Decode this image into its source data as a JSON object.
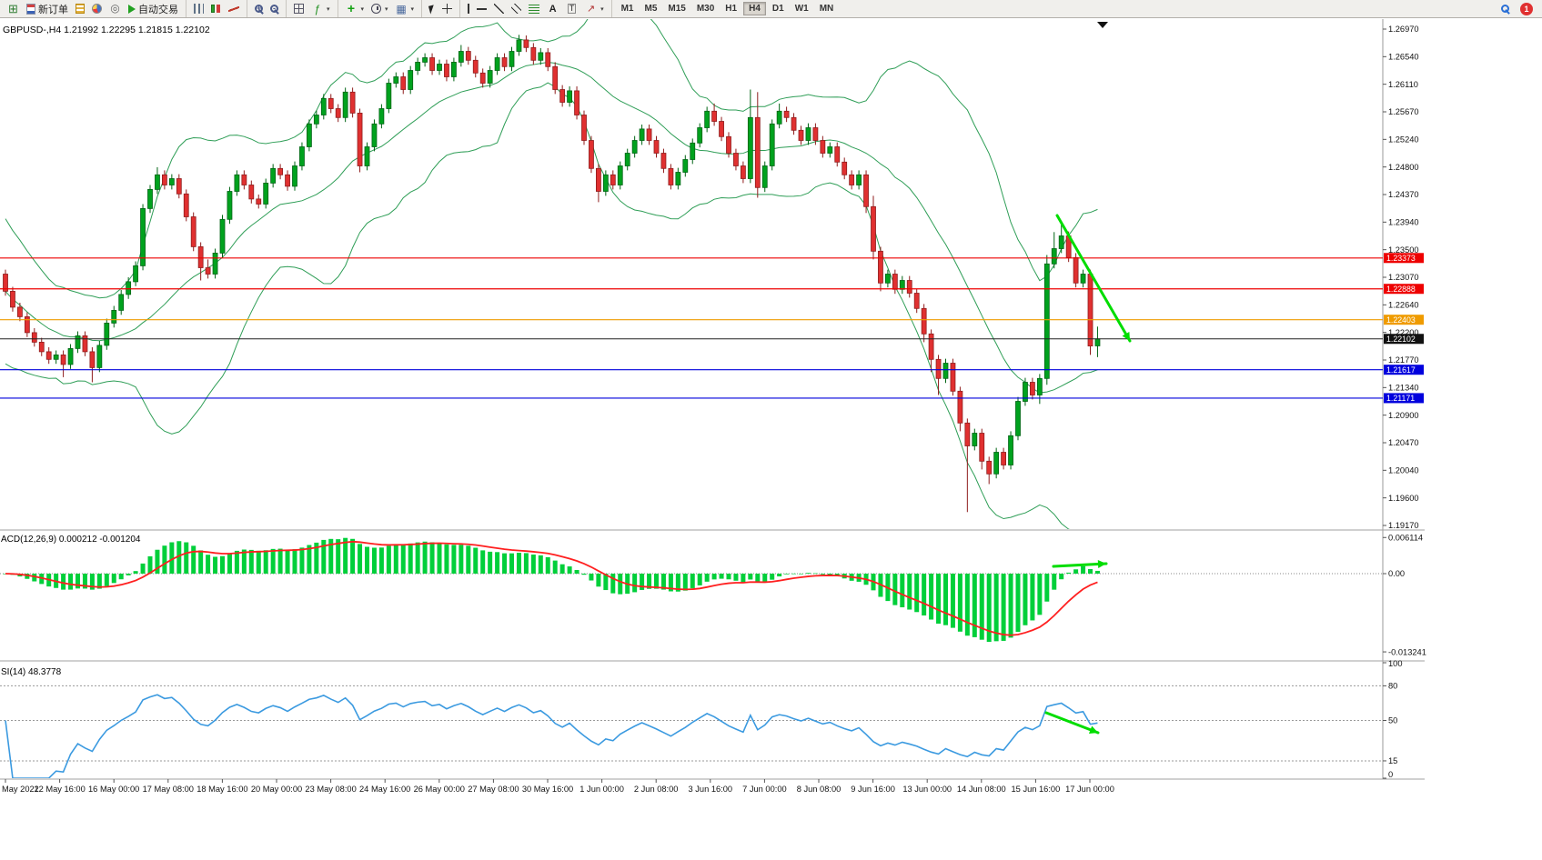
{
  "toolbar": {
    "groups": [
      [
        {
          "name": "new-chart",
          "icon": "new-chart-icon"
        },
        {
          "name": "new-order",
          "icon": "new-order-icon",
          "label": "新订单"
        },
        {
          "name": "market-watch",
          "icon": "market-watch-icon"
        },
        {
          "name": "chart-profiles",
          "icon": "profiles-icon"
        },
        {
          "name": "navigator",
          "icon": "navigator-icon"
        },
        {
          "name": "autotrading",
          "icon": "autotrade-play-icon",
          "label": "自动交易"
        }
      ],
      [
        {
          "name": "chart-bars",
          "icon": "bars-chart-icon"
        },
        {
          "name": "chart-candles",
          "icon": "candlestick-chart-icon"
        },
        {
          "name": "chart-line",
          "icon": "line-chart-icon"
        }
      ],
      [
        {
          "name": "zoom-in",
          "icon": "zoom-in-icon"
        },
        {
          "name": "zoom-out",
          "icon": "zoom-out-icon"
        }
      ],
      [
        {
          "name": "tile-windows",
          "icon": "tile-windows-icon"
        },
        {
          "name": "indicators",
          "icon": "indicators-icon",
          "caret": true
        }
      ],
      [
        {
          "name": "add-indicator",
          "icon": "green-plus-icon",
          "caret": true
        },
        {
          "name": "periods",
          "icon": "clock-icon",
          "caret": true
        },
        {
          "name": "templates",
          "icon": "template-icon",
          "caret": true
        }
      ],
      [
        {
          "name": "cursor",
          "icon": "cursor-icon"
        },
        {
          "name": "crosshair",
          "icon": "crosshair-icon"
        }
      ],
      [
        {
          "name": "vertical-line",
          "icon": "vertical-line-icon"
        },
        {
          "name": "horizontal-line",
          "icon": "horizontal-line-icon"
        },
        {
          "name": "trendline",
          "icon": "trendline-icon"
        },
        {
          "name": "channel",
          "icon": "channel-icon"
        },
        {
          "name": "fibonacci",
          "icon": "fibonacci-icon"
        },
        {
          "name": "text",
          "icon": "text-a-icon"
        },
        {
          "name": "text-label",
          "icon": "text-label-icon"
        },
        {
          "name": "arrows",
          "icon": "arrows-icon",
          "caret": true
        }
      ]
    ],
    "timeframes": [
      "M1",
      "M5",
      "M15",
      "M30",
      "H1",
      "H4",
      "D1",
      "W1",
      "MN"
    ],
    "active_timeframe": "H4",
    "notifications_count": "1"
  },
  "chart_data": {
    "type": "candlestick",
    "symbol": "GBPUSD-",
    "timeframe": "H4",
    "title": "GBPUSD-,H4 1.21992 1.22295 1.21815 1.22102",
    "current_bar": {
      "open": "1.21992",
      "high": "1.22295",
      "low": "1.21815",
      "close": "1.22102"
    },
    "price_axis": {
      "max": 1.2697,
      "min": 1.1917,
      "labels": [
        "1.26970",
        "1.26540",
        "1.26110",
        "1.25670",
        "1.25240",
        "1.24800",
        "1.24370",
        "1.23940",
        "1.23500",
        "1.23070",
        "1.22640",
        "1.22200",
        "1.21770",
        "1.21340",
        "1.20900",
        "1.20470",
        "1.20040",
        "1.19600",
        "1.19170"
      ]
    },
    "time_axis": [
      "May 2022",
      "12 May 16:00",
      "16 May 00:00",
      "17 May 08:00",
      "18 May 16:00",
      "20 May 00:00",
      "23 May 08:00",
      "24 May 16:00",
      "26 May 00:00",
      "27 May 08:00",
      "30 May 16:00",
      "1 Jun 00:00",
      "2 Jun 08:00",
      "3 Jun 16:00",
      "7 Jun 00:00",
      "8 Jun 08:00",
      "9 Jun 16:00",
      "13 Jun 00:00",
      "14 Jun 08:00",
      "15 Jun 16:00",
      "17 Jun 00:00"
    ],
    "bollinger": {
      "period": 20,
      "deviation": 2,
      "color": "#2f9e57"
    },
    "candles": [
      [
        1.2312,
        1.2319,
        1.2278,
        1.2285
      ],
      [
        1.2285,
        1.2292,
        1.2253,
        1.226
      ],
      [
        1.226,
        1.2267,
        1.2238,
        1.2245
      ],
      [
        1.2245,
        1.2252,
        1.2213,
        1.222
      ],
      [
        1.222,
        1.2227,
        1.2198,
        1.2205
      ],
      [
        1.2205,
        1.2212,
        1.2183,
        1.219
      ],
      [
        1.219,
        1.2197,
        1.2171,
        1.2178
      ],
      [
        1.2178,
        1.2192,
        1.2171,
        1.2185
      ],
      [
        1.2185,
        1.2192,
        1.215,
        1.217
      ],
      [
        1.217,
        1.2202,
        1.2163,
        1.2195
      ],
      [
        1.2195,
        1.2222,
        1.2188,
        1.2215
      ],
      [
        1.2215,
        1.2222,
        1.2183,
        1.219
      ],
      [
        1.219,
        1.2197,
        1.2142,
        1.2165
      ],
      [
        1.2165,
        1.2207,
        1.2158,
        1.22
      ],
      [
        1.22,
        1.2242,
        1.2193,
        1.2235
      ],
      [
        1.2235,
        1.2262,
        1.2228,
        1.2255
      ],
      [
        1.2255,
        1.2287,
        1.2248,
        1.228
      ],
      [
        1.228,
        1.2307,
        1.2273,
        1.23
      ],
      [
        1.23,
        1.2332,
        1.2293,
        1.2325
      ],
      [
        1.2325,
        1.2422,
        1.2318,
        1.2415
      ],
      [
        1.2415,
        1.2452,
        1.2408,
        1.2445
      ],
      [
        1.2445,
        1.248,
        1.2438,
        1.2468
      ],
      [
        1.2468,
        1.2475,
        1.2445,
        1.2452
      ],
      [
        1.2452,
        1.2469,
        1.2445,
        1.2462
      ],
      [
        1.2462,
        1.2469,
        1.2431,
        1.2438
      ],
      [
        1.2438,
        1.2445,
        1.2395,
        1.2402
      ],
      [
        1.2402,
        1.2409,
        1.2348,
        1.2355
      ],
      [
        1.2355,
        1.2362,
        1.2302,
        1.2322
      ],
      [
        1.2322,
        1.2335,
        1.2305,
        1.2312
      ],
      [
        1.2312,
        1.2352,
        1.2305,
        1.2345
      ],
      [
        1.2345,
        1.2405,
        1.2338,
        1.2398
      ],
      [
        1.2398,
        1.2449,
        1.2391,
        1.2442
      ],
      [
        1.2442,
        1.2475,
        1.2435,
        1.2468
      ],
      [
        1.2468,
        1.2475,
        1.2445,
        1.2452
      ],
      [
        1.2452,
        1.2459,
        1.2423,
        1.243
      ],
      [
        1.243,
        1.2437,
        1.2415,
        1.2422
      ],
      [
        1.2422,
        1.2462,
        1.2415,
        1.2455
      ],
      [
        1.2455,
        1.2485,
        1.2448,
        1.2478
      ],
      [
        1.2478,
        1.2485,
        1.2461,
        1.2468
      ],
      [
        1.2468,
        1.2475,
        1.2443,
        1.245
      ],
      [
        1.245,
        1.2489,
        1.2443,
        1.2482
      ],
      [
        1.2482,
        1.2519,
        1.2475,
        1.2512
      ],
      [
        1.2512,
        1.2555,
        1.2505,
        1.2548
      ],
      [
        1.2548,
        1.2569,
        1.2541,
        1.2562
      ],
      [
        1.2562,
        1.2595,
        1.2555,
        1.2588
      ],
      [
        1.2588,
        1.2595,
        1.2565,
        1.2572
      ],
      [
        1.2572,
        1.2579,
        1.2551,
        1.2558
      ],
      [
        1.2558,
        1.2605,
        1.2551,
        1.2598
      ],
      [
        1.2598,
        1.2605,
        1.2558,
        1.2565
      ],
      [
        1.2565,
        1.2572,
        1.2472,
        1.2482
      ],
      [
        1.2482,
        1.2519,
        1.2475,
        1.2512
      ],
      [
        1.2512,
        1.2555,
        1.2505,
        1.2548
      ],
      [
        1.2548,
        1.2579,
        1.2541,
        1.2572
      ],
      [
        1.2572,
        1.2619,
        1.2565,
        1.2612
      ],
      [
        1.2612,
        1.2629,
        1.2605,
        1.2622
      ],
      [
        1.2622,
        1.2629,
        1.2595,
        1.2602
      ],
      [
        1.2602,
        1.2639,
        1.2595,
        1.2632
      ],
      [
        1.2632,
        1.2652,
        1.2625,
        1.2645
      ],
      [
        1.2645,
        1.2659,
        1.2638,
        1.2652
      ],
      [
        1.2652,
        1.2659,
        1.2625,
        1.2632
      ],
      [
        1.2632,
        1.2649,
        1.2625,
        1.2642
      ],
      [
        1.2642,
        1.2649,
        1.2615,
        1.2622
      ],
      [
        1.2622,
        1.2652,
        1.2615,
        1.2645
      ],
      [
        1.2645,
        1.2672,
        1.2638,
        1.2662
      ],
      [
        1.2662,
        1.2669,
        1.2641,
        1.2648
      ],
      [
        1.2648,
        1.2655,
        1.2621,
        1.2628
      ],
      [
        1.2628,
        1.2635,
        1.2605,
        1.2612
      ],
      [
        1.2612,
        1.2639,
        1.2605,
        1.2632
      ],
      [
        1.2632,
        1.2659,
        1.2625,
        1.2652
      ],
      [
        1.2652,
        1.2659,
        1.2631,
        1.2638
      ],
      [
        1.2638,
        1.2669,
        1.2631,
        1.2662
      ],
      [
        1.2662,
        1.2688,
        1.2655,
        1.268
      ],
      [
        1.268,
        1.2687,
        1.2661,
        1.2668
      ],
      [
        1.2668,
        1.2675,
        1.2641,
        1.2648
      ],
      [
        1.2648,
        1.2667,
        1.2641,
        1.266
      ],
      [
        1.266,
        1.2667,
        1.2631,
        1.2638
      ],
      [
        1.2638,
        1.2645,
        1.2595,
        1.2602
      ],
      [
        1.2602,
        1.2609,
        1.2575,
        1.2582
      ],
      [
        1.2582,
        1.2607,
        1.2575,
        1.26
      ],
      [
        1.26,
        1.2607,
        1.2555,
        1.2562
      ],
      [
        1.2562,
        1.2569,
        1.2515,
        1.2522
      ],
      [
        1.2522,
        1.2529,
        1.2471,
        1.2478
      ],
      [
        1.2478,
        1.2485,
        1.2425,
        1.2442
      ],
      [
        1.2442,
        1.2475,
        1.2435,
        1.2468
      ],
      [
        1.2468,
        1.2475,
        1.2445,
        1.2452
      ],
      [
        1.2452,
        1.2489,
        1.2445,
        1.2482
      ],
      [
        1.2482,
        1.2509,
        1.2475,
        1.2502
      ],
      [
        1.2502,
        1.2529,
        1.2495,
        1.2522
      ],
      [
        1.2522,
        1.2547,
        1.2515,
        1.254
      ],
      [
        1.254,
        1.2547,
        1.2515,
        1.2522
      ],
      [
        1.2522,
        1.2529,
        1.2495,
        1.2502
      ],
      [
        1.2502,
        1.2509,
        1.2471,
        1.2478
      ],
      [
        1.2478,
        1.2485,
        1.2445,
        1.2452
      ],
      [
        1.2452,
        1.2479,
        1.2445,
        1.2472
      ],
      [
        1.2472,
        1.2499,
        1.2465,
        1.2492
      ],
      [
        1.2492,
        1.2525,
        1.2485,
        1.2518
      ],
      [
        1.2518,
        1.2549,
        1.2511,
        1.2542
      ],
      [
        1.2542,
        1.2575,
        1.2535,
        1.2568
      ],
      [
        1.2568,
        1.258,
        1.2545,
        1.2552
      ],
      [
        1.2552,
        1.2559,
        1.2521,
        1.2528
      ],
      [
        1.2528,
        1.2535,
        1.2495,
        1.2502
      ],
      [
        1.2502,
        1.2509,
        1.2475,
        1.2482
      ],
      [
        1.2482,
        1.2489,
        1.2455,
        1.2462
      ],
      [
        1.2462,
        1.2602,
        1.2455,
        1.2558
      ],
      [
        1.2558,
        1.2598,
        1.2432,
        1.2448
      ],
      [
        1.2448,
        1.2489,
        1.2441,
        1.2482
      ],
      [
        1.2482,
        1.2555,
        1.2475,
        1.2548
      ],
      [
        1.2548,
        1.258,
        1.2541,
        1.2568
      ],
      [
        1.2568,
        1.2575,
        1.2551,
        1.2558
      ],
      [
        1.2558,
        1.2565,
        1.2531,
        1.2538
      ],
      [
        1.2538,
        1.2545,
        1.2515,
        1.2522
      ],
      [
        1.2522,
        1.2549,
        1.2515,
        1.2542
      ],
      [
        1.2542,
        1.2549,
        1.2515,
        1.2522
      ],
      [
        1.2522,
        1.2529,
        1.2495,
        1.2502
      ],
      [
        1.2502,
        1.2519,
        1.2495,
        1.2512
      ],
      [
        1.2512,
        1.2519,
        1.2481,
        1.2488
      ],
      [
        1.2488,
        1.2495,
        1.2461,
        1.2468
      ],
      [
        1.2468,
        1.2475,
        1.2445,
        1.2452
      ],
      [
        1.2452,
        1.2475,
        1.2445,
        1.2468
      ],
      [
        1.2468,
        1.2475,
        1.2408,
        1.2418
      ],
      [
        1.2418,
        1.2435,
        1.2335,
        1.2348
      ],
      [
        1.2348,
        1.2355,
        1.2285,
        1.2298
      ],
      [
        1.2298,
        1.2319,
        1.2291,
        1.2312
      ],
      [
        1.2312,
        1.2319,
        1.2281,
        1.2288
      ],
      [
        1.2288,
        1.2309,
        1.2281,
        1.2302
      ],
      [
        1.2302,
        1.2309,
        1.2275,
        1.2282
      ],
      [
        1.2282,
        1.2289,
        1.2251,
        1.2258
      ],
      [
        1.2258,
        1.2265,
        1.2205,
        1.2218
      ],
      [
        1.2218,
        1.2225,
        1.2158,
        1.2178
      ],
      [
        1.2178,
        1.2185,
        1.2122,
        1.2148
      ],
      [
        1.2148,
        1.2179,
        1.2141,
        1.2172
      ],
      [
        1.2172,
        1.2179,
        1.2121,
        1.2128
      ],
      [
        1.2128,
        1.2135,
        1.2065,
        1.2078
      ],
      [
        1.2078,
        1.2085,
        1.1938,
        1.2042
      ],
      [
        1.2042,
        1.2069,
        1.2035,
        1.2062
      ],
      [
        1.2062,
        1.2069,
        1.2005,
        1.2018
      ],
      [
        1.2018,
        1.2025,
        1.1982,
        1.1998
      ],
      [
        1.1998,
        1.2039,
        1.1991,
        1.2032
      ],
      [
        1.2032,
        1.2039,
        1.2005,
        1.2012
      ],
      [
        1.2012,
        1.2065,
        1.2005,
        1.2058
      ],
      [
        1.2058,
        1.2119,
        1.2051,
        1.2112
      ],
      [
        1.2112,
        1.2149,
        1.2105,
        1.2142
      ],
      [
        1.2142,
        1.2149,
        1.2115,
        1.2122
      ],
      [
        1.2122,
        1.2155,
        1.2108,
        1.2148
      ],
      [
        1.2148,
        1.2342,
        1.2138,
        1.2328
      ],
      [
        1.2328,
        1.2378,
        1.2321,
        1.2352
      ],
      [
        1.2352,
        1.2392,
        1.2345,
        1.2372
      ],
      [
        1.2372,
        1.2379,
        1.2331,
        1.2338
      ],
      [
        1.2338,
        1.2345,
        1.2291,
        1.2298
      ],
      [
        1.2298,
        1.2319,
        1.2291,
        1.2312
      ],
      [
        1.2312,
        1.2319,
        1.2185,
        1.2199
      ],
      [
        1.21992,
        1.22295,
        1.21815,
        1.22102
      ]
    ],
    "levels": [
      {
        "price": 1.23373,
        "label": "1.23373",
        "color": "#ee0000"
      },
      {
        "price": 1.22888,
        "label": "1.22888",
        "color": "#ee0000"
      },
      {
        "price": 1.22403,
        "label": "1.22403",
        "color": "#ef9b00"
      },
      {
        "price": 1.21617,
        "label": "1.21617",
        "color": "#0000dd"
      },
      {
        "price": 1.21171,
        "label": "1.21171",
        "color": "#0000dd"
      }
    ],
    "current_price": {
      "value": 1.22102,
      "label": "1.22102",
      "line_color": "#222222",
      "badge_color": "#111111"
    },
    "candle_colors": {
      "up": "#00a21e",
      "down": "#e03030"
    },
    "macd": {
      "label": "ACD(12,26,9) 0.000212 -0.001204",
      "params": [
        12,
        26,
        9
      ],
      "value": "0.000212",
      "signal_value": "-0.001204",
      "axis_labels": [
        "0.006114",
        "0.00",
        "-0.013241"
      ],
      "histogram_color": "#00cf3a",
      "signal_color": "#ff1f1f"
    },
    "rsi": {
      "label": "SI(14) 48.3778",
      "period": 14,
      "value": "48.3778",
      "axis_labels": [
        "100",
        "80",
        "50",
        "15",
        "0"
      ],
      "levels": [
        80,
        50,
        15
      ],
      "line_color": "#3b9ae0"
    },
    "annotations": [
      {
        "name": "price-downtrend-arrow",
        "panel": "price",
        "from": [
          1162,
          216
        ],
        "to": [
          1242,
          354
        ],
        "color": "#00dd00",
        "width": 3
      },
      {
        "name": "macd-flat-arrow",
        "panel": "macd",
        "from": [
          1158,
          602
        ],
        "to": [
          1216,
          599
        ],
        "color": "#00dd00",
        "width": 3
      },
      {
        "name": "rsi-down-arrow",
        "panel": "rsi",
        "from": [
          1150,
          763
        ],
        "to": [
          1207,
          785
        ],
        "color": "#00dd00",
        "width": 3
      }
    ]
  }
}
